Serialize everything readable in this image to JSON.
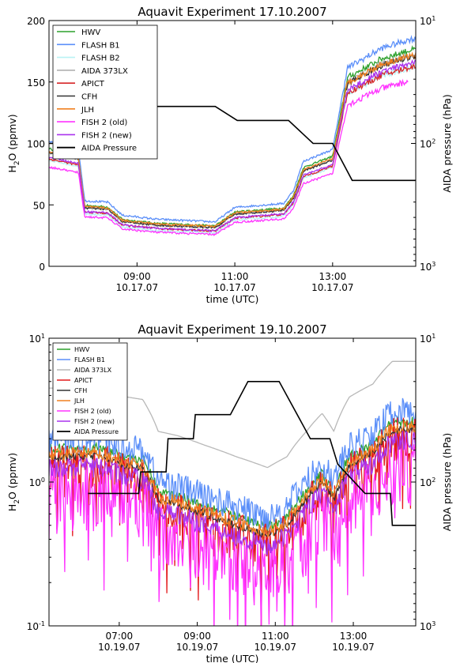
{
  "chart_data": [
    {
      "type": "line",
      "title": "Aquavit Experiment 17.10.2007",
      "xlabel": "time (UTC)",
      "ylabel": "H2O (ppmv)",
      "ylabel_sub": "2",
      "ylabel_pre": "H",
      "ylabel_post": "O (ppmv)",
      "y2label": "AIDA pressure (hPa)",
      "xlim": [
        7.2,
        14.7
      ],
      "ylim": [
        0,
        200
      ],
      "y2lim": [
        1000,
        10
      ],
      "y2_scale": "log",
      "x_ticks": [
        {
          "value": 9,
          "line1": "09:00",
          "line2": "10.17.07"
        },
        {
          "value": 11,
          "line1": "11:00",
          "line2": "10.17.07"
        },
        {
          "value": 13,
          "line1": "13:00",
          "line2": "10.17.07"
        }
      ],
      "y_ticks": [
        "0",
        "50",
        "100",
        "150",
        "200"
      ],
      "y2_ticks": [
        {
          "value": 10,
          "label": "10",
          "sup": "1"
        },
        {
          "value": 100,
          "label": "10",
          "sup": "2"
        },
        {
          "value": 1000,
          "label": "10",
          "sup": "3"
        }
      ],
      "legend_position": "top-left",
      "series": [
        {
          "name": "HWV",
          "color": "#2ca02c",
          "offset": 1.0,
          "scale": 1.03
        },
        {
          "name": "FLASH B1",
          "color": "#5b8ff9",
          "offset": 3.0,
          "scale": 1.07
        },
        {
          "name": "FLASH B2",
          "color": "#b8f2f4",
          "offset": -3.0,
          "scale": 0.97
        },
        {
          "name": "AIDA 373LX",
          "color": "#b0b0b0",
          "offset": 0.0,
          "scale": 1.01
        },
        {
          "name": "APICT",
          "color": "#d62728",
          "offset": -1.0,
          "scale": 0.96
        },
        {
          "name": "CFH",
          "color": "#333333",
          "offset": 0.5,
          "scale": 1.0
        },
        {
          "name": "JLH",
          "color": "#f08020",
          "offset": 1.5,
          "scale": 1.0
        },
        {
          "name": "FISH 2 (old)",
          "color": "#ff33ff",
          "offset": -2.0,
          "scale": 0.9
        },
        {
          "name": "FISH 2 (new)",
          "color": "#aa33ee",
          "offset": -1.5,
          "scale": 0.98
        }
      ],
      "base_profile": [
        [
          7.2,
          92
        ],
        [
          7.8,
          87
        ],
        [
          7.93,
          47
        ],
        [
          8.4,
          46
        ],
        [
          8.7,
          36
        ],
        [
          9.4,
          33
        ],
        [
          10.6,
          31
        ],
        [
          11.0,
          42
        ],
        [
          12.0,
          45
        ],
        [
          12.2,
          55
        ],
        [
          12.4,
          77
        ],
        [
          13.0,
          86
        ],
        [
          13.3,
          148
        ],
        [
          14.0,
          163
        ],
        [
          14.6,
          170
        ]
      ],
      "pressure_series": {
        "name": "AIDA Pressure",
        "color": "#000000",
        "points": [
          [
            7.2,
            100
          ],
          [
            7.8,
            100
          ],
          [
            7.85,
            66
          ],
          [
            8.45,
            66
          ],
          [
            8.5,
            50
          ],
          [
            10.6,
            50
          ],
          [
            11.05,
            65
          ],
          [
            12.1,
            65
          ],
          [
            12.6,
            100
          ],
          [
            13.0,
            100
          ],
          [
            13.4,
            200
          ],
          [
            14.7,
            200
          ]
        ]
      }
    },
    {
      "type": "line",
      "title": "Aquavit Experiment 19.10.2007",
      "xlabel": "time (UTC)",
      "ylabel": "H2O (ppmv)",
      "ylabel_sub": "2",
      "ylabel_pre": "H",
      "ylabel_post": "O (ppmv)",
      "y2label": "AIDA pressure (hPa)",
      "xlim": [
        5.2,
        14.6
      ],
      "ylim": [
        0.1,
        10
      ],
      "y_scale": "log",
      "y2lim": [
        1000,
        10
      ],
      "y2_scale": "log",
      "x_ticks": [
        {
          "value": 7,
          "line1": "07:00",
          "line2": "10.19.07"
        },
        {
          "value": 9,
          "line1": "09:00",
          "line2": "10.19.07"
        },
        {
          "value": 11,
          "line1": "11:00",
          "line2": "10.19.07"
        },
        {
          "value": 13,
          "line1": "13:00",
          "line2": "10.19.07"
        }
      ],
      "y_ticks": [
        {
          "value": 0.1,
          "label": "10",
          "sup": "-1"
        },
        {
          "value": 1,
          "label": "10",
          "sup": "0"
        },
        {
          "value": 10,
          "label": "10",
          "sup": "1"
        }
      ],
      "y2_ticks": [
        {
          "value": 10,
          "label": "10",
          "sup": "1"
        },
        {
          "value": 100,
          "label": "10",
          "sup": "2"
        },
        {
          "value": 1000,
          "label": "10",
          "sup": "3"
        }
      ],
      "legend_position": "top-left",
      "series": [
        {
          "name": "HWV",
          "color": "#2ca02c",
          "factor": 1.15,
          "noise": 0.04
        },
        {
          "name": "FLASH B1",
          "color": "#5b8ff9",
          "factor": 1.35,
          "noise": 0.12
        },
        {
          "name": "AIDA 373LX",
          "color": "#b8b8b8",
          "factor": 3.0,
          "noise": 0.0
        },
        {
          "name": "APICT",
          "color": "#e31a1c",
          "factor": 0.9,
          "noise": 0.18
        },
        {
          "name": "CFH",
          "color": "#333333",
          "factor": 1.0,
          "noise": 0.03
        },
        {
          "name": "JLH",
          "color": "#f08020",
          "factor": 1.05,
          "noise": 0.05
        },
        {
          "name": "FISH 2 (old)",
          "color": "#ff33ff",
          "factor": 0.6,
          "noise": 0.25
        },
        {
          "name": "FISH 2 (new)",
          "color": "#aa33ee",
          "factor": 0.85,
          "noise": 0.08
        }
      ],
      "base_profile": [
        [
          5.6,
          1.5
        ],
        [
          6.5,
          1.5
        ],
        [
          7.2,
          1.3
        ],
        [
          7.6,
          1.25
        ],
        [
          8.0,
          0.75
        ],
        [
          8.5,
          0.7
        ],
        [
          9.2,
          0.6
        ],
        [
          10.0,
          0.5
        ],
        [
          10.8,
          0.42
        ],
        [
          11.3,
          0.5
        ],
        [
          11.8,
          0.75
        ],
        [
          12.2,
          1.0
        ],
        [
          12.5,
          0.75
        ],
        [
          12.9,
          1.3
        ],
        [
          13.5,
          1.6
        ],
        [
          14.0,
          2.3
        ],
        [
          14.6,
          2.3
        ]
      ],
      "pressure_series": {
        "name": "AIDA Pressure",
        "color": "#000000",
        "points": [
          [
            6.2,
            120
          ],
          [
            7.5,
            120
          ],
          [
            7.55,
            85
          ],
          [
            8.2,
            85
          ],
          [
            8.25,
            50
          ],
          [
            8.9,
            50
          ],
          [
            8.95,
            34
          ],
          [
            9.85,
            34
          ],
          [
            10.3,
            20
          ],
          [
            11.1,
            20
          ],
          [
            11.9,
            50
          ],
          [
            12.4,
            50
          ],
          [
            12.6,
            75
          ],
          [
            13.3,
            120
          ],
          [
            13.95,
            120
          ],
          [
            14.0,
            200
          ],
          [
            14.6,
            200
          ]
        ]
      }
    }
  ]
}
